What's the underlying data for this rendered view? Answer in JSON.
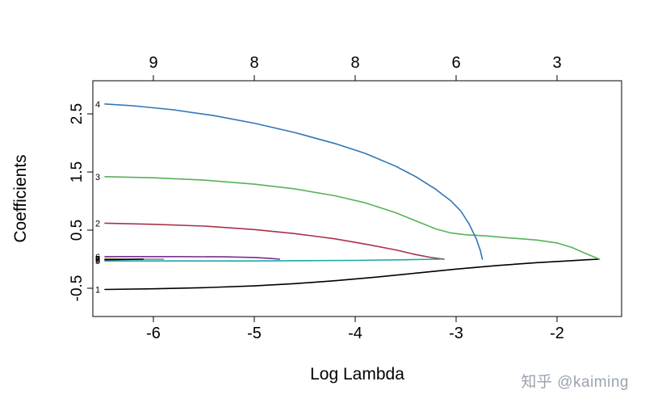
{
  "figure": {
    "watermark": "知乎 @kaiming"
  },
  "chart_data": {
    "type": "line",
    "title": "",
    "xlabel": "Log Lambda",
    "ylabel": "Coefficients",
    "xlim": [
      -6.6,
      -1.36
    ],
    "ylim": [
      -0.986,
      3.07
    ],
    "grid": false,
    "legend": "none",
    "x_ticks": [
      -6,
      -5,
      -4,
      -3,
      -2
    ],
    "x_tick_labels": [
      "-6",
      "-5",
      "-4",
      "-3",
      "-2"
    ],
    "y_ticks": [
      -0.5,
      0.5,
      1.5,
      2.5
    ],
    "y_tick_labels": [
      "-0.5",
      "0.5",
      "1.5",
      "2.5"
    ],
    "top_axis": {
      "description": "number of nonzero coefficients",
      "positions": [
        -6,
        -5,
        -4,
        -3,
        -2
      ],
      "labels": [
        "9",
        "8",
        "8",
        "6",
        "3"
      ]
    },
    "series": [
      {
        "name": "var1",
        "label": "1",
        "color": "#000000",
        "points": [
          [
            -6.48,
            -0.52
          ],
          [
            -6.0,
            -0.51
          ],
          [
            -5.5,
            -0.49
          ],
          [
            -5.0,
            -0.46
          ],
          [
            -4.6,
            -0.42
          ],
          [
            -4.2,
            -0.37
          ],
          [
            -3.8,
            -0.31
          ],
          [
            -3.4,
            -0.24
          ],
          [
            -3.0,
            -0.17
          ],
          [
            -2.6,
            -0.11
          ],
          [
            -2.2,
            -0.06
          ],
          [
            -1.9,
            -0.03
          ],
          [
            -1.7,
            -0.01
          ],
          [
            -1.58,
            0.0
          ]
        ]
      },
      {
        "name": "var2",
        "label": "2",
        "color": "#a8324a",
        "points": [
          [
            -6.48,
            0.62
          ],
          [
            -6.0,
            0.6
          ],
          [
            -5.5,
            0.57
          ],
          [
            -5.0,
            0.51
          ],
          [
            -4.6,
            0.44
          ],
          [
            -4.2,
            0.35
          ],
          [
            -3.9,
            0.26
          ],
          [
            -3.6,
            0.16
          ],
          [
            -3.4,
            0.08
          ],
          [
            -3.25,
            0.03
          ],
          [
            -3.12,
            0.0
          ]
        ]
      },
      {
        "name": "var3",
        "label": "3",
        "color": "#55b25a",
        "points": [
          [
            -6.48,
            1.42
          ],
          [
            -6.0,
            1.4
          ],
          [
            -5.5,
            1.36
          ],
          [
            -5.0,
            1.29
          ],
          [
            -4.6,
            1.21
          ],
          [
            -4.2,
            1.09
          ],
          [
            -3.9,
            0.97
          ],
          [
            -3.6,
            0.8
          ],
          [
            -3.4,
            0.66
          ],
          [
            -3.2,
            0.52
          ],
          [
            -3.05,
            0.45
          ],
          [
            -2.9,
            0.42
          ],
          [
            -2.7,
            0.4
          ],
          [
            -2.5,
            0.37
          ],
          [
            -2.2,
            0.33
          ],
          [
            -2.0,
            0.28
          ],
          [
            -1.85,
            0.2
          ],
          [
            -1.72,
            0.1
          ],
          [
            -1.58,
            0.0
          ]
        ]
      },
      {
        "name": "var4",
        "label": "4",
        "color": "#2e75b6",
        "points": [
          [
            -6.48,
            2.67
          ],
          [
            -6.2,
            2.64
          ],
          [
            -5.8,
            2.57
          ],
          [
            -5.4,
            2.47
          ],
          [
            -5.0,
            2.34
          ],
          [
            -4.6,
            2.18
          ],
          [
            -4.2,
            1.99
          ],
          [
            -3.9,
            1.82
          ],
          [
            -3.6,
            1.6
          ],
          [
            -3.4,
            1.42
          ],
          [
            -3.2,
            1.2
          ],
          [
            -3.05,
            1.0
          ],
          [
            -2.95,
            0.82
          ],
          [
            -2.87,
            0.6
          ],
          [
            -2.8,
            0.35
          ],
          [
            -2.76,
            0.15
          ],
          [
            -2.74,
            0.0
          ]
        ]
      },
      {
        "name": "var5",
        "label": "5",
        "color": "#1fa8a8",
        "points": [
          [
            -6.48,
            -0.03
          ],
          [
            -5.0,
            -0.03
          ],
          [
            -4.0,
            -0.02
          ],
          [
            -3.5,
            -0.01
          ],
          [
            -3.15,
            0.0
          ]
        ]
      },
      {
        "name": "var6",
        "label": "6",
        "color": "#7b2d8e",
        "points": [
          [
            -6.48,
            0.045
          ],
          [
            -5.8,
            0.045
          ],
          [
            -5.3,
            0.04
          ],
          [
            -5.0,
            0.03
          ],
          [
            -4.85,
            0.015
          ],
          [
            -4.75,
            0.0
          ]
        ]
      },
      {
        "name": "var7",
        "label": "7",
        "color": "#c9b400",
        "points": [
          [
            -6.48,
            0.01
          ],
          [
            -6.3,
            0.0
          ]
        ]
      },
      {
        "name": "var8",
        "label": "8",
        "color": "#808080",
        "points": [
          [
            -6.48,
            0.0
          ],
          [
            -5.9,
            0.0
          ]
        ]
      },
      {
        "name": "var9",
        "label": "9",
        "color": "#000000",
        "points": [
          [
            -6.48,
            -0.01
          ],
          [
            -6.1,
            0.0
          ]
        ]
      }
    ]
  }
}
